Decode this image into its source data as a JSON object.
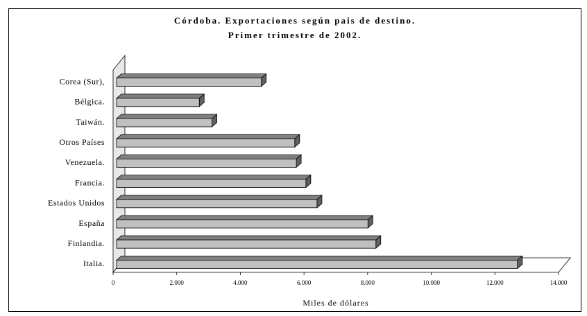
{
  "chart_data": {
    "type": "bar3d",
    "title": "Córdoba. Exportaciones según pais de destino.",
    "subtitle": "Primer trimestre de 2002.",
    "x_label": "Miles de dólares",
    "categories": [
      "Italia.",
      "Finlandia.",
      "España",
      "Estados Unidos",
      "Francia.",
      "Venezuela.",
      "Otros Países",
      "Taiwán.",
      "Bélgica.",
      "Corea (Sur),"
    ],
    "values": [
      12600,
      8150,
      7900,
      6300,
      5950,
      5650,
      5600,
      3000,
      2600,
      4550
    ],
    "color": "#c0c0c0",
    "xlim": [
      0,
      14000
    ],
    "xticks": [
      0,
      {
        "value": 2000,
        "label": "2.000"
      },
      {
        "value": 4000,
        "label": "4.000"
      },
      {
        "value": 6000,
        "label": "6.000"
      },
      {
        "value": 8000,
        "label": "8.000"
      },
      {
        "value": 10000,
        "label": "10.000"
      },
      {
        "value": 12000,
        "label": "12.000"
      },
      {
        "value": 14000,
        "label": "14.000"
      }
    ]
  }
}
